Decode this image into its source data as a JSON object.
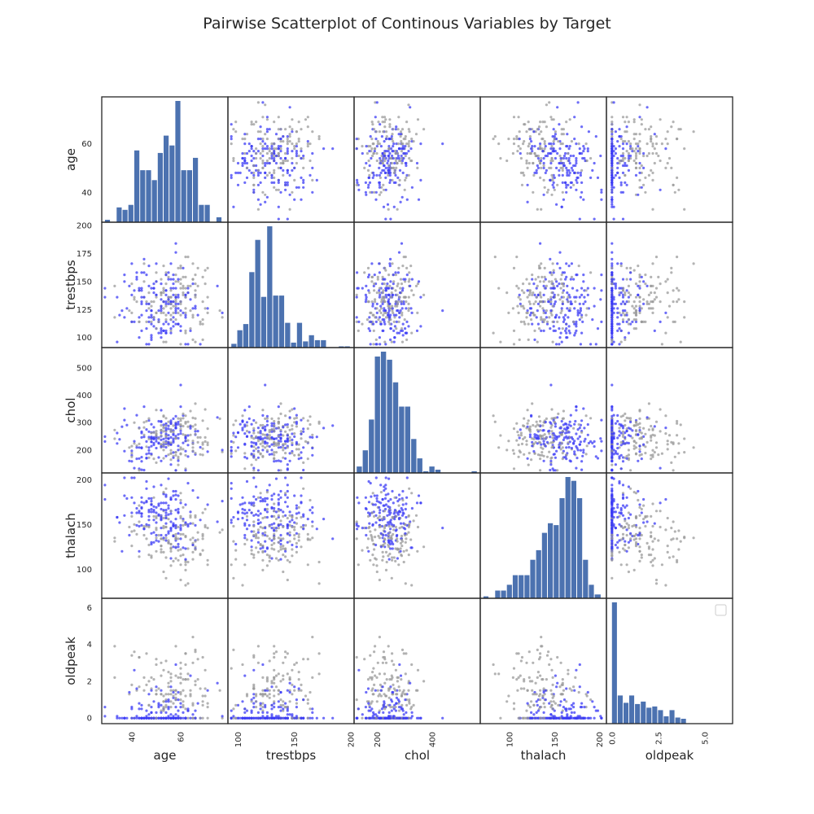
{
  "chart_data": {
    "type": "scatter",
    "title": "Pairwise Scatterplot of Continous Variables by Target",
    "variables": [
      "age",
      "trestbps",
      "chol",
      "thalach",
      "oldpeak"
    ],
    "ranges": {
      "age": [
        27.7,
        79.3
      ],
      "trestbps": [
        91.0,
        203.0
      ],
      "chol": [
        116.5,
        573.5
      ],
      "thalach": [
        67.5,
        207.5
      ],
      "oldpeak": [
        -0.3,
        6.5
      ]
    },
    "ticks": {
      "age": [
        40,
        60
      ],
      "trestbps": [
        100,
        125,
        150,
        175,
        200
      ],
      "chol": [
        200,
        300,
        400,
        500
      ],
      "thalach": [
        100,
        150,
        200
      ],
      "oldpeak": [
        0,
        2,
        4,
        6
      ]
    },
    "xticks": {
      "age": [
        "40",
        "60"
      ],
      "trestbps": [
        "100",
        "150",
        "200"
      ],
      "chol": [
        "200",
        "400"
      ],
      "thalach": [
        "100",
        "150",
        "200"
      ],
      "oldpeak": [
        "0.0",
        "2.5",
        "5.0"
      ]
    },
    "xtick_values": {
      "age": [
        40,
        60
      ],
      "trestbps": [
        100,
        150,
        200
      ],
      "chol": [
        200,
        400
      ],
      "thalach": [
        100,
        150,
        200
      ],
      "oldpeak": [
        0,
        2.5,
        5.0
      ]
    },
    "series": [
      {
        "color": "#3b3bf5"
      },
      {
        "color": "#9a9a9a"
      }
    ],
    "histograms": {
      "age": {
        "edges": [
          29,
          31.4,
          33.8,
          36.2,
          38.6,
          41,
          43.4,
          45.8,
          48.2,
          50.6,
          53,
          55.4,
          57.8,
          60.2,
          62.6,
          65,
          67.4,
          69.8,
          72.2,
          74.6,
          77
        ],
        "counts": [
          1,
          0,
          6,
          5,
          7,
          29,
          21,
          21,
          17,
          28,
          35,
          31,
          49,
          21,
          21,
          26,
          7,
          7,
          0,
          2
        ]
      },
      "trestbps": {
        "edges": [
          94,
          99.3,
          104.6,
          109.9,
          115.2,
          120.5,
          125.8,
          131.1,
          136.4,
          141.7,
          147,
          152.3,
          157.6,
          162.9,
          168.2,
          173.5,
          178.8,
          184.1,
          189.4,
          194.7,
          200
        ],
        "counts": [
          3,
          14,
          19,
          61,
          87,
          41,
          98,
          42,
          42,
          20,
          4,
          20,
          5,
          10,
          6,
          6,
          0,
          0,
          1,
          1
        ]
      },
      "chol": {
        "edges": [
          126,
          147.9,
          169.8,
          191.7,
          213.6,
          235.5,
          257.4,
          279.3,
          301.2,
          323.1,
          345,
          366.9,
          388.8,
          410.7,
          432.6,
          454.5,
          476.4,
          498.3,
          520.2,
          542.1,
          564
        ],
        "counts": [
          4,
          14,
          33,
          72,
          75,
          70,
          56,
          41,
          41,
          21,
          9,
          1,
          4,
          2,
          0,
          0,
          0,
          0,
          0,
          1
        ]
      },
      "thalach": {
        "edges": [
          71,
          77.5,
          84,
          90.5,
          97,
          103.5,
          110,
          116.5,
          123,
          129.5,
          136,
          142.5,
          149,
          155.5,
          162,
          168.5,
          175,
          181.5,
          188,
          194.5,
          202
        ],
        "counts": [
          1,
          0,
          4,
          4,
          7,
          12,
          12,
          12,
          20,
          25,
          34,
          39,
          38,
          52,
          63,
          61,
          52,
          20,
          7,
          2
        ]
      },
      "oldpeak": {
        "edges": [
          0,
          0.31,
          0.62,
          0.93,
          1.24,
          1.55,
          1.86,
          2.17,
          2.48,
          2.79,
          3.1,
          3.41,
          3.72,
          4.03,
          4.34,
          4.65,
          4.96,
          5.27,
          5.58,
          5.89,
          6.2
        ],
        "counts": [
          99,
          23,
          17,
          23,
          16,
          18,
          13,
          14,
          11,
          6,
          11,
          5,
          4,
          0,
          0,
          0,
          0,
          0,
          0,
          0
        ]
      }
    },
    "n_points": 303,
    "grid": false,
    "legend": "top-right (empty)"
  }
}
